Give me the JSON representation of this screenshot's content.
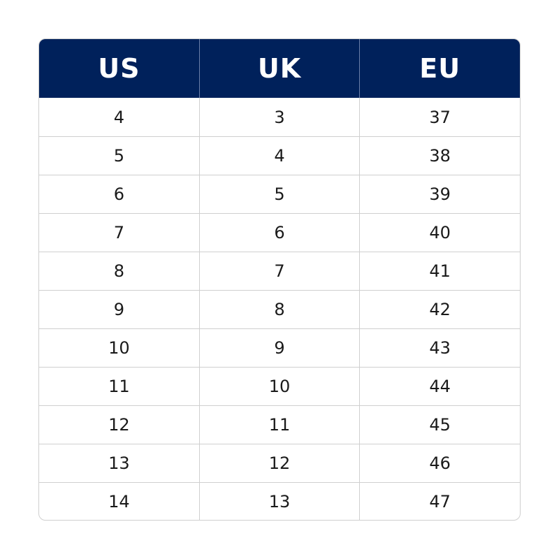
{
  "table": {
    "headers": [
      "US",
      "UK",
      "EU"
    ],
    "rows": [
      [
        "4",
        "3",
        "37"
      ],
      [
        "5",
        "4",
        "38"
      ],
      [
        "6",
        "5",
        "39"
      ],
      [
        "7",
        "6",
        "40"
      ],
      [
        "8",
        "7",
        "41"
      ],
      [
        "9",
        "8",
        "42"
      ],
      [
        "10",
        "9",
        "43"
      ],
      [
        "11",
        "10",
        "44"
      ],
      [
        "12",
        "11",
        "45"
      ],
      [
        "13",
        "12",
        "46"
      ],
      [
        "14",
        "13",
        "47"
      ]
    ]
  },
  "colors": {
    "header_bg": "#00215b",
    "header_text": "#ffffff",
    "grid": "#cfcfcf",
    "cell_text": "#1a1a1a"
  }
}
